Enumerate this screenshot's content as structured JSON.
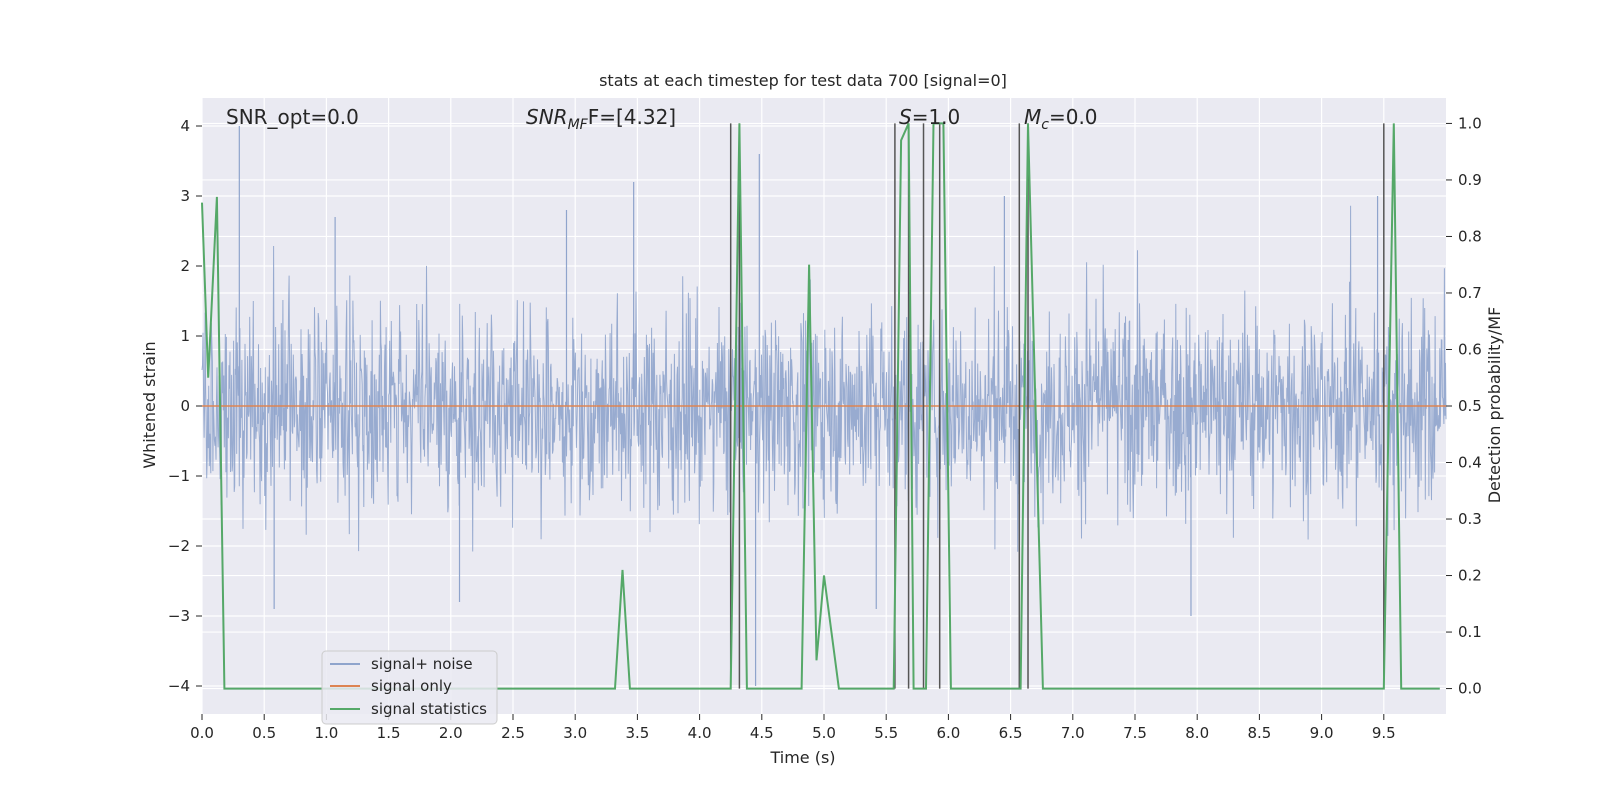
{
  "chart_data": {
    "type": "line",
    "title": "stats at each timestep for test data 700 [signal=0]",
    "xlabel": "Time (s)",
    "ylabel_left": "Whitened strain",
    "ylabel_right": "Detection probability/MF",
    "xlim": [
      0.0,
      10.0
    ],
    "ylim_left": [
      -4.4,
      4.4
    ],
    "ylim_right": [
      -0.045,
      1.045
    ],
    "xticks": [
      "0.0",
      "0.5",
      "1.0",
      "1.5",
      "2.0",
      "2.5",
      "3.0",
      "3.5",
      "4.0",
      "4.5",
      "5.0",
      "5.5",
      "6.0",
      "6.5",
      "7.0",
      "7.5",
      "8.0",
      "8.5",
      "9.0",
      "9.5"
    ],
    "yticks_left": [
      "4",
      "3",
      "2",
      "1",
      "0",
      "−1",
      "−2",
      "−3",
      "−4"
    ],
    "yticks_right": [
      "1.0",
      "0.9",
      "0.8",
      "0.7",
      "0.6",
      "0.5",
      "0.4",
      "0.3",
      "0.2",
      "0.1",
      "0.0"
    ],
    "grid": true,
    "legend_position": "lower-left",
    "annotations": {
      "snr_opt": "SNR_opt=0.0",
      "snr_mf_base": "SNR",
      "snr_mf_sub": "MF",
      "snr_mf_rest": "F=[4.32]",
      "s_label": "S",
      "s_rest": "=1.0",
      "mc_base": "M",
      "mc_sub": "c",
      "mc_rest": "=0.0"
    },
    "series": [
      {
        "name": "signal+ noise",
        "color": "#8fa4cc",
        "description_of_values": "whitened strain noise, envelope approx ±1.6 with spikes to about ±2.9; peak 4.0 at t=0.3",
        "peak_spikes": [
          [
            0.3,
            4.0
          ],
          [
            0.58,
            -2.9
          ],
          [
            1.07,
            2.7
          ],
          [
            2.07,
            -2.8
          ],
          [
            2.93,
            2.8
          ],
          [
            3.47,
            3.2
          ],
          [
            4.48,
            3.6
          ],
          [
            4.45,
            -4.0
          ],
          [
            5.42,
            -2.9
          ],
          [
            6.45,
            3.0
          ],
          [
            7.95,
            -3.0
          ],
          [
            9.45,
            3.0
          ]
        ]
      },
      {
        "name": "signal only",
        "color": "#dd8452",
        "x": [
          0.0,
          10.0
        ],
        "y": [
          0.0,
          0.0
        ]
      },
      {
        "name": "signal statistics",
        "color": "#55a868",
        "axis": "right",
        "x": [
          0.0,
          0.05,
          0.12,
          0.18,
          10.0
        ],
        "y": [
          0.86,
          0.55,
          0.87,
          0.0,
          0.0
        ],
        "points": [
          [
            0.0,
            0.86
          ],
          [
            0.05,
            0.55
          ],
          [
            0.12,
            0.87
          ],
          [
            0.18,
            0.0
          ],
          [
            3.32,
            0.0
          ],
          [
            3.38,
            0.21
          ],
          [
            3.44,
            0.0
          ],
          [
            4.25,
            0.0
          ],
          [
            4.32,
            1.0
          ],
          [
            4.38,
            0.0
          ],
          [
            4.82,
            0.0
          ],
          [
            4.88,
            0.75
          ],
          [
            4.94,
            0.05
          ],
          [
            5.0,
            0.2
          ],
          [
            5.12,
            0.0
          ],
          [
            5.56,
            0.0
          ],
          [
            5.62,
            0.97
          ],
          [
            5.68,
            1.0
          ],
          [
            5.72,
            0.0
          ],
          [
            5.82,
            0.0
          ],
          [
            5.88,
            1.0
          ],
          [
            5.96,
            1.0
          ],
          [
            6.02,
            0.0
          ],
          [
            6.58,
            0.0
          ],
          [
            6.64,
            1.0
          ],
          [
            6.76,
            0.0
          ],
          [
            9.5,
            0.0
          ],
          [
            9.58,
            1.0
          ],
          [
            9.64,
            0.0
          ],
          [
            9.95,
            0.0
          ]
        ]
      }
    ],
    "vertical_markers": {
      "color": "#555555",
      "x": [
        4.25,
        4.32,
        5.57,
        5.68,
        5.8,
        5.93,
        6.57,
        6.64,
        9.5
      ]
    }
  }
}
